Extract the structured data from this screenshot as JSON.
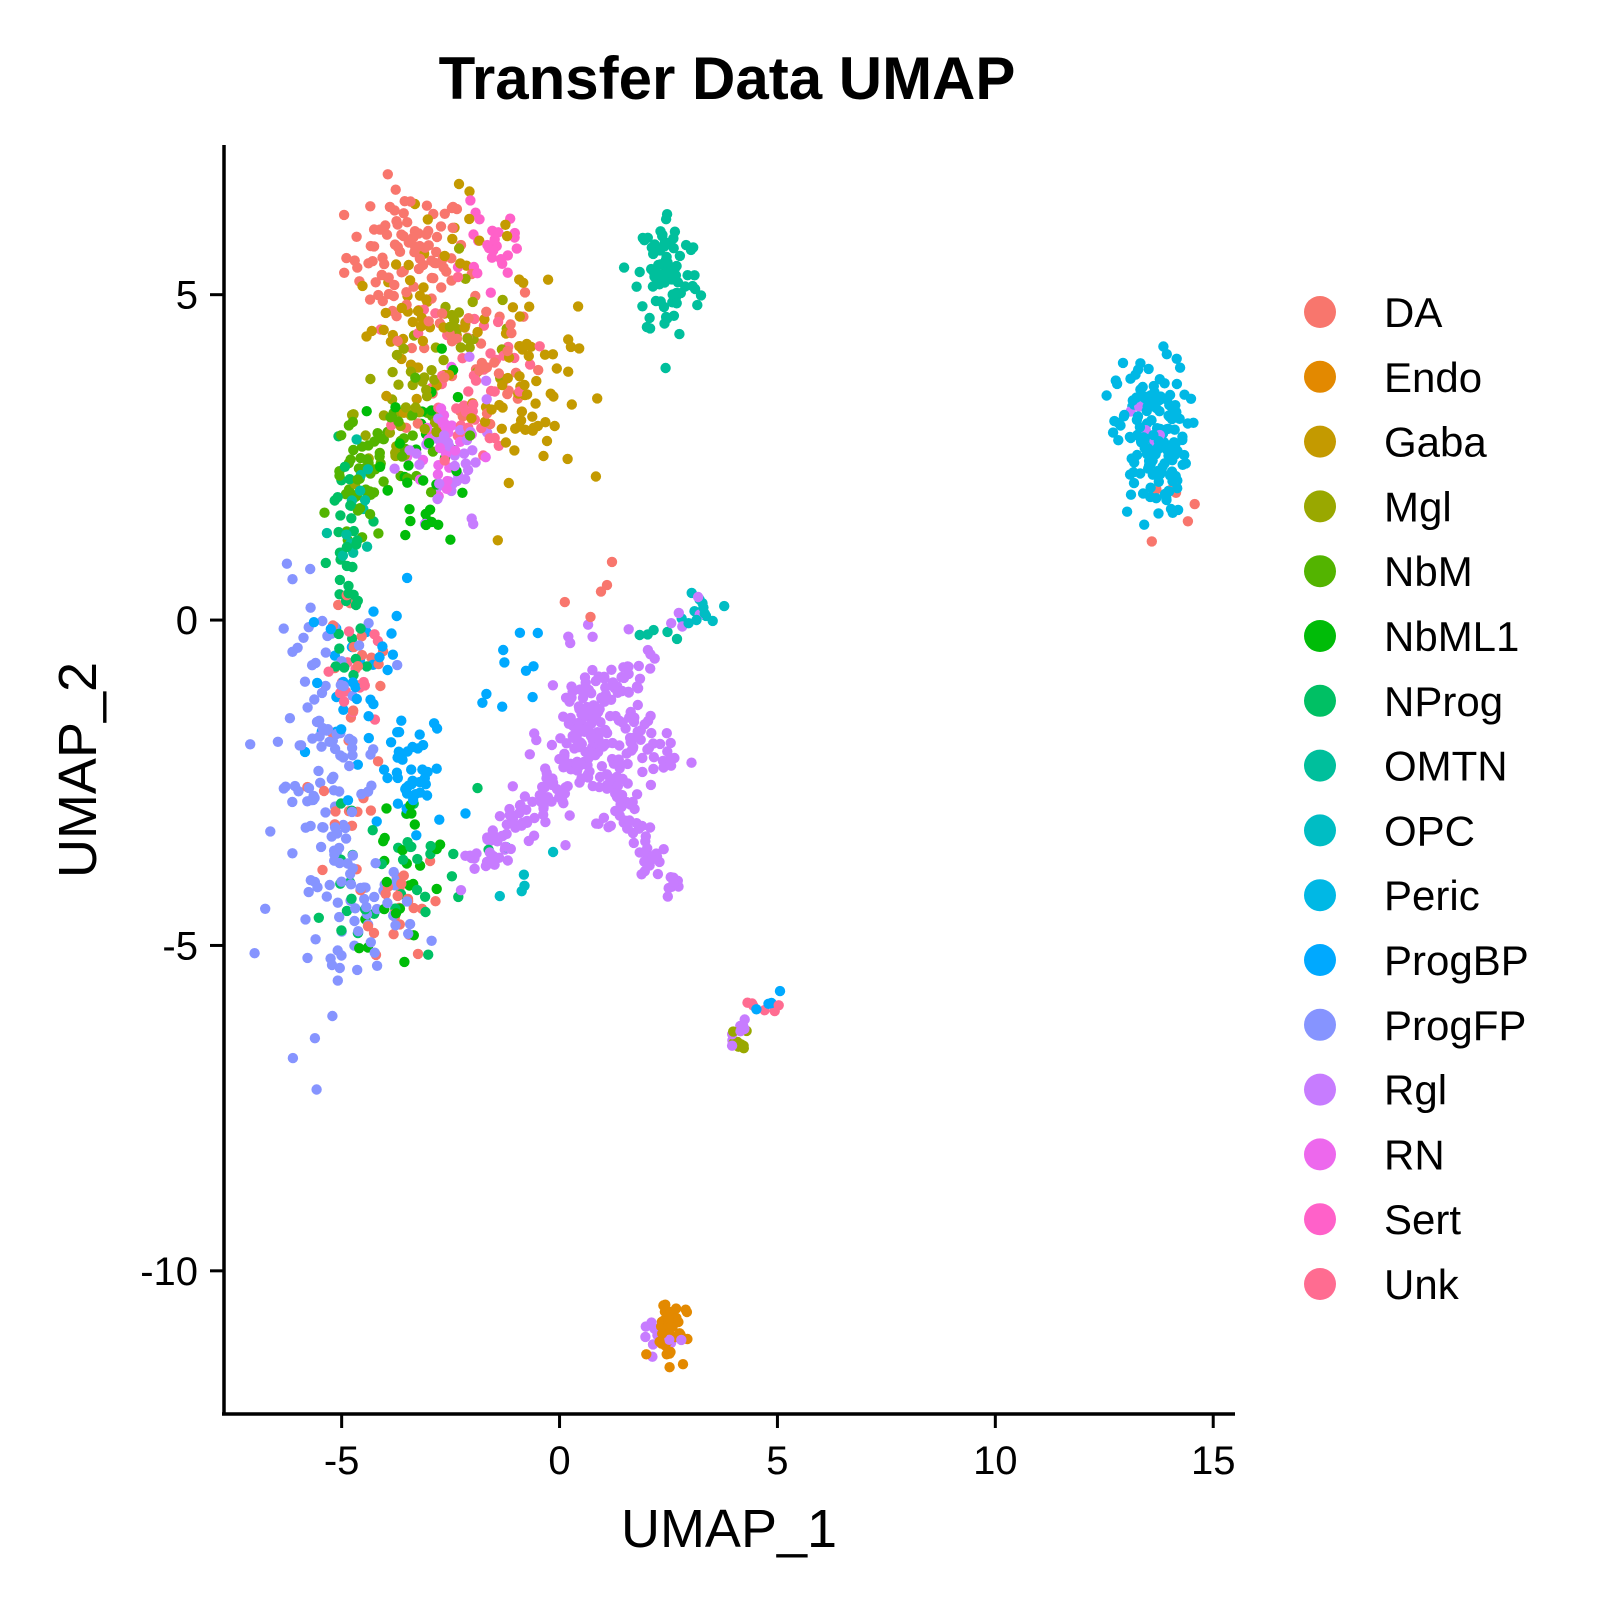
{
  "chart_data": {
    "type": "scatter",
    "title": "Transfer Data UMAP",
    "xlabel": "UMAP_1",
    "ylabel": "UMAP_2",
    "xlim": [
      -7.7,
      15.5
    ],
    "ylim": [
      -12.2,
      7.3
    ],
    "xticks": [
      -5,
      0,
      5,
      10,
      15
    ],
    "yticks": [
      -10,
      -5,
      0,
      5
    ],
    "xtick_labels": [
      "-5",
      "0",
      "5",
      "10",
      "15"
    ],
    "ytick_labels": [
      "-10",
      "-5",
      "0",
      "5"
    ],
    "grid": false,
    "legend_position": "right",
    "series": [
      {
        "name": "DA",
        "color": "#F8766D"
      },
      {
        "name": "Endo",
        "color": "#E38900"
      },
      {
        "name": "Gaba",
        "color": "#C49A00"
      },
      {
        "name": "Mgl",
        "color": "#99A800"
      },
      {
        "name": "NbM",
        "color": "#53B400"
      },
      {
        "name": "NbML1",
        "color": "#00BC08"
      },
      {
        "name": "NProg",
        "color": "#00C064"
      },
      {
        "name": "OMTN",
        "color": "#00BF9C"
      },
      {
        "name": "OPC",
        "color": "#00BDC4"
      },
      {
        "name": "Peric",
        "color": "#00B8E5"
      },
      {
        "name": "ProgBP",
        "color": "#00A9FF"
      },
      {
        "name": "ProgFP",
        "color": "#8694FF"
      },
      {
        "name": "Rgl",
        "color": "#C77CFF"
      },
      {
        "name": "RN",
        "color": "#ED68ED"
      },
      {
        "name": "Sert",
        "color": "#FF61C9"
      },
      {
        "name": "Unk",
        "color": "#FF6C91"
      }
    ],
    "clusters": [
      {
        "series": "DA",
        "cx": -3.5,
        "cy": 5.6,
        "sx": 0.7,
        "sy": 0.5,
        "n": 90
      },
      {
        "series": "DA",
        "cx": -2.0,
        "cy": 4.0,
        "sx": 0.8,
        "sy": 0.7,
        "n": 40
      },
      {
        "series": "DA",
        "cx": -4.7,
        "cy": -1.3,
        "sx": 0.5,
        "sy": 1.5,
        "n": 30
      },
      {
        "series": "DA",
        "cx": -3.7,
        "cy": -4.3,
        "sx": 0.5,
        "sy": 0.4,
        "n": 25
      },
      {
        "series": "DA",
        "cx": 13.9,
        "cy": 1.9,
        "sx": 0.3,
        "sy": 0.3,
        "n": 6
      },
      {
        "series": "DA",
        "cx": 0.8,
        "cy": 0.2,
        "sx": 0.5,
        "sy": 0.3,
        "n": 5
      },
      {
        "series": "Gaba",
        "cx": -0.8,
        "cy": 3.6,
        "sx": 0.6,
        "sy": 0.7,
        "n": 70
      },
      {
        "series": "Gaba",
        "cx": -3.3,
        "cy": 4.5,
        "sx": 0.7,
        "sy": 0.5,
        "n": 40
      },
      {
        "series": "Gaba",
        "cx": -2.5,
        "cy": 6.0,
        "sx": 0.7,
        "sy": 0.3,
        "n": 15
      },
      {
        "series": "Mgl",
        "cx": -3.5,
        "cy": 3.2,
        "sx": 0.6,
        "sy": 0.6,
        "n": 40
      },
      {
        "series": "Mgl",
        "cx": -2.0,
        "cy": 4.4,
        "sx": 0.7,
        "sy": 0.4,
        "n": 20
      },
      {
        "series": "Mgl",
        "cx": 4.1,
        "cy": -6.5,
        "sx": 0.12,
        "sy": 0.12,
        "n": 8
      },
      {
        "series": "NbM",
        "cx": -4.6,
        "cy": 2.1,
        "sx": 0.3,
        "sy": 0.5,
        "n": 40
      },
      {
        "series": "NbM",
        "cx": -3.5,
        "cy": 2.5,
        "sx": 0.6,
        "sy": 0.5,
        "n": 30
      },
      {
        "series": "NbML1",
        "cx": -3.0,
        "cy": 2.5,
        "sx": 0.5,
        "sy": 0.7,
        "n": 35
      },
      {
        "series": "NbML1",
        "cx": -3.6,
        "cy": -3.8,
        "sx": 0.6,
        "sy": 0.6,
        "n": 25
      },
      {
        "series": "NProg",
        "cx": -4.9,
        "cy": 0.8,
        "sx": 0.2,
        "sy": 0.9,
        "n": 40
      },
      {
        "series": "NProg",
        "cx": -3.5,
        "cy": -3.8,
        "sx": 0.8,
        "sy": 0.6,
        "n": 25
      },
      {
        "series": "NProg",
        "cx": -4.9,
        "cy": -4.6,
        "sx": 0.3,
        "sy": 0.6,
        "n": 10
      },
      {
        "series": "OMTN",
        "cx": 2.5,
        "cy": 5.3,
        "sx": 0.35,
        "sy": 0.5,
        "n": 90
      },
      {
        "series": "OMTN",
        "cx": -4.8,
        "cy": 1.7,
        "sx": 0.25,
        "sy": 0.6,
        "n": 15
      },
      {
        "series": "OPC",
        "cx": 3.3,
        "cy": 0.2,
        "sx": 0.2,
        "sy": 0.15,
        "n": 12
      },
      {
        "series": "OPC",
        "cx": -0.8,
        "cy": -3.8,
        "sx": 0.3,
        "sy": 0.3,
        "n": 6
      },
      {
        "series": "Peric",
        "cx": 13.6,
        "cy": 2.8,
        "sx": 0.4,
        "sy": 0.6,
        "n": 160
      },
      {
        "series": "ProgBP",
        "cx": -3.3,
        "cy": -2.5,
        "sx": 0.5,
        "sy": 0.5,
        "n": 30
      },
      {
        "series": "ProgBP",
        "cx": -4.5,
        "cy": -1.0,
        "sx": 0.6,
        "sy": 0.8,
        "n": 40
      },
      {
        "series": "ProgBP",
        "cx": -1.0,
        "cy": -0.7,
        "sx": 0.5,
        "sy": 0.3,
        "n": 10
      },
      {
        "series": "ProgFP",
        "cx": -5.3,
        "cy": -2.5,
        "sx": 0.6,
        "sy": 1.5,
        "n": 120
      },
      {
        "series": "ProgFP",
        "cx": -4.5,
        "cy": -4.5,
        "sx": 0.6,
        "sy": 0.4,
        "n": 40
      },
      {
        "series": "Rgl",
        "cx": 0.9,
        "cy": -1.7,
        "sx": 0.6,
        "sy": 0.6,
        "n": 160
      },
      {
        "series": "Rgl",
        "cx": -2.5,
        "cy": 2.3,
        "sx": 0.5,
        "sy": 0.6,
        "n": 40
      },
      {
        "series": "Rgl",
        "cx": 2.2,
        "cy": -11.0,
        "sx": 0.2,
        "sy": 0.15,
        "n": 10
      },
      {
        "series": "Rgl",
        "cx": 13.4,
        "cy": 3.0,
        "sx": 0.4,
        "sy": 0.3,
        "n": 6
      },
      {
        "series": "RN",
        "cx": -2.6,
        "cy": 2.6,
        "sx": 0.4,
        "sy": 0.5,
        "n": 25
      },
      {
        "series": "Sert",
        "cx": -1.6,
        "cy": 5.7,
        "sx": 0.3,
        "sy": 0.3,
        "n": 25
      },
      {
        "series": "Unk",
        "cx": -2.0,
        "cy": 3.7,
        "sx": 0.7,
        "sy": 0.6,
        "n": 50
      },
      {
        "series": "Unk",
        "cx": -4.8,
        "cy": -0.8,
        "sx": 0.3,
        "sy": 0.4,
        "n": 15
      },
      {
        "series": "Unk",
        "cx": 4.8,
        "cy": -5.9,
        "sx": 0.3,
        "sy": 0.1,
        "n": 6
      },
      {
        "series": "Endo",
        "cx": 2.5,
        "cy": -10.9,
        "sx": 0.2,
        "sy": 0.25,
        "n": 40
      }
    ],
    "segments": [
      {
        "series": "Rgl",
        "x0": -2.0,
        "y0": -3.8,
        "x1": 0.5,
        "y1": -2.2,
        "n": 90,
        "jitter": 0.2
      },
      {
        "series": "Rgl",
        "x0": 1.0,
        "y0": -2.3,
        "x1": 2.6,
        "y1": -4.2,
        "n": 60,
        "jitter": 0.15
      },
      {
        "series": "Rgl",
        "x0": 1.5,
        "y0": -1.8,
        "x1": 3.3,
        "y1": -2.5,
        "n": 20,
        "jitter": 0.15
      },
      {
        "series": "Rgl",
        "x0": 1.2,
        "y0": -1.0,
        "x1": 3.2,
        "y1": 0.3,
        "n": 15,
        "jitter": 0.1
      },
      {
        "series": "Rgl",
        "x0": 3.9,
        "y0": -6.6,
        "x1": 4.3,
        "y1": -6.1,
        "n": 8,
        "jitter": 0.05
      },
      {
        "series": "ProgBP",
        "x0": -3.3,
        "y0": -2.5,
        "x1": -2.8,
        "y1": -2.5,
        "n": 5,
        "jitter": 0.1
      },
      {
        "series": "ProgBP",
        "x0": 4.2,
        "y0": -6.2,
        "x1": 5.1,
        "y1": -5.7,
        "n": 4,
        "jitter": 0.05
      },
      {
        "series": "OMTN",
        "x0": 1.7,
        "y0": -0.2,
        "x1": 2.8,
        "y1": -0.2,
        "n": 5,
        "jitter": 0.05
      }
    ]
  }
}
